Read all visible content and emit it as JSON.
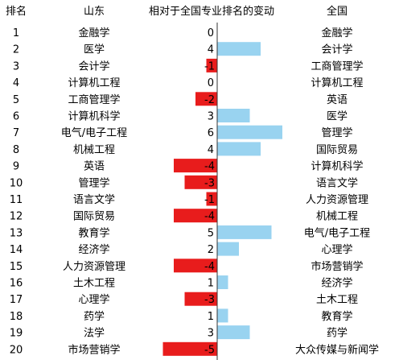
{
  "chart_data": {
    "type": "table",
    "headers": {
      "rank": "排名",
      "shandong": "山东",
      "change": "相对于全国专业排名的变动",
      "national": "全国"
    },
    "rows": [
      {
        "rank": "1",
        "shandong": "金融学",
        "change": 0,
        "change_label": "0",
        "national": "金融学"
      },
      {
        "rank": "2",
        "shandong": "医学",
        "change": 4,
        "change_label": "4",
        "national": "会计学"
      },
      {
        "rank": "3",
        "shandong": "会计学",
        "change": -1,
        "change_label": "-1",
        "national": "工商管理学"
      },
      {
        "rank": "4",
        "shandong": "计算机工程",
        "change": 0,
        "change_label": "0",
        "national": "计算机工程"
      },
      {
        "rank": "5",
        "shandong": "工商管理学",
        "change": -2,
        "change_label": "-2",
        "national": "英语"
      },
      {
        "rank": "6",
        "shandong": "计算机科学",
        "change": 3,
        "change_label": "3",
        "national": "医学"
      },
      {
        "rank": "7",
        "shandong": "电气/电子工程",
        "change": 6,
        "change_label": "6",
        "national": "管理学"
      },
      {
        "rank": "8",
        "shandong": "机械工程",
        "change": 4,
        "change_label": "4",
        "national": "国际贸易"
      },
      {
        "rank": "9",
        "shandong": "英语",
        "change": -4,
        "change_label": "-4",
        "national": "计算机科学"
      },
      {
        "rank": "10",
        "shandong": "管理学",
        "change": -3,
        "change_label": "-3",
        "national": "语言文学"
      },
      {
        "rank": "11",
        "shandong": "语言文学",
        "change": -1,
        "change_label": "-1",
        "national": "人力资源管理"
      },
      {
        "rank": "12",
        "shandong": "国际贸易",
        "change": -4,
        "change_label": "-4",
        "national": "机械工程"
      },
      {
        "rank": "13",
        "shandong": "教育学",
        "change": 5,
        "change_label": "5",
        "national": "电气/电子工程"
      },
      {
        "rank": "14",
        "shandong": "经济学",
        "change": 2,
        "change_label": "2",
        "national": "心理学"
      },
      {
        "rank": "15",
        "shandong": "人力资源管理",
        "change": -4,
        "change_label": "-4",
        "national": "市场营销学"
      },
      {
        "rank": "16",
        "shandong": "土木工程",
        "change": 1,
        "change_label": "1",
        "national": "经济学"
      },
      {
        "rank": "17",
        "shandong": "心理学",
        "change": -3,
        "change_label": "-3",
        "national": "土木工程"
      },
      {
        "rank": "18",
        "shandong": "药学",
        "change": 1,
        "change_label": "1",
        "national": "教育学"
      },
      {
        "rank": "19",
        "shandong": "法学",
        "change": 3,
        "change_label": "3",
        "national": "药学"
      },
      {
        "rank": "20",
        "shandong": "市场营销学",
        "change": -5,
        "change_label": "-5",
        "national": "大众传媒与新闻学"
      }
    ],
    "colors": {
      "positive": "#99d3f0",
      "negative": "#e81c1c",
      "axis": "#333333"
    }
  }
}
